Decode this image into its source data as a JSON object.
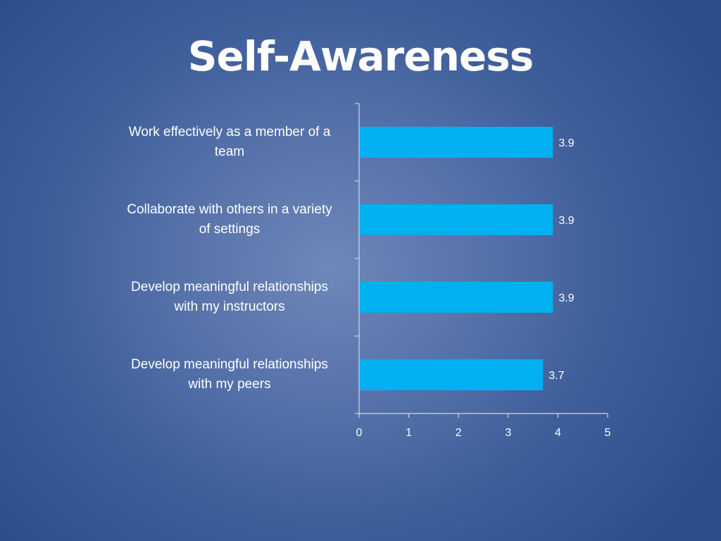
{
  "slide": {
    "title": "Self-Awareness"
  },
  "colors": {
    "bar": "#00b0f0",
    "axis": "#d0d8e8",
    "text": "#ffffff"
  },
  "chart_data": {
    "type": "bar",
    "orientation": "horizontal",
    "title": "Self-Awareness",
    "categories": [
      [
        "Work effectively as a member of a",
        "team"
      ],
      [
        "Collaborate with others in a variety",
        "of settings"
      ],
      [
        "Develop meaningful relationships",
        "with my instructors"
      ],
      [
        "Develop meaningful relationships",
        "with my peers"
      ]
    ],
    "values": [
      3.9,
      3.9,
      3.9,
      3.7
    ],
    "data_labels": [
      "3.9",
      "3.9",
      "3.9",
      "3.7"
    ],
    "xlim": [
      0,
      5
    ],
    "x_ticks": [
      0,
      1,
      2,
      3,
      4,
      5
    ],
    "xlabel": "",
    "ylabel": "",
    "grid": false,
    "legend": "none"
  }
}
